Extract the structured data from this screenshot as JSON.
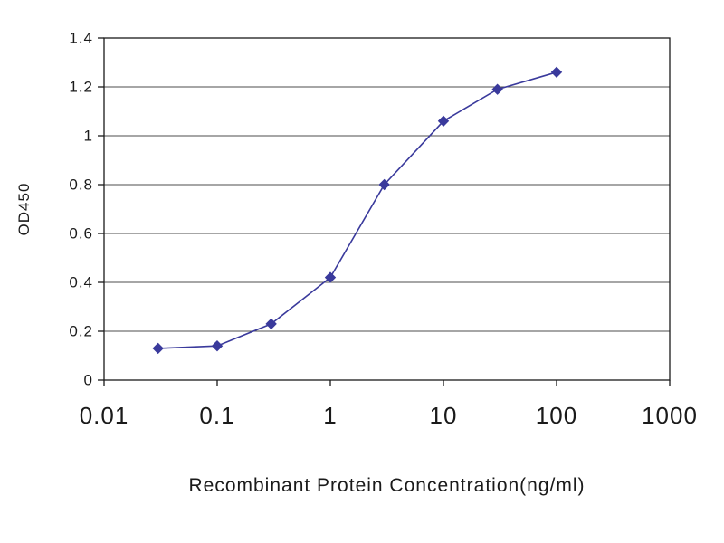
{
  "chart_data": {
    "type": "line",
    "title": "",
    "xlabel": "Recombinant Protein Concentration(ng/ml)",
    "ylabel": "OD450",
    "x_scale": "log",
    "xlim": [
      0.01,
      1000
    ],
    "ylim": [
      0,
      1.4
    ],
    "x_ticks": [
      0.01,
      0.1,
      1,
      10,
      100,
      1000
    ],
    "x_tick_labels": [
      "0.01",
      "0.1",
      "1",
      "10",
      "100",
      "1000"
    ],
    "y_ticks": [
      0,
      0.2,
      0.4,
      0.6,
      0.8,
      1,
      1.2,
      1.4
    ],
    "y_tick_labels": [
      "0",
      "0.2",
      "0.4",
      "0.6",
      "0.8",
      "1",
      "1.2",
      "1.4"
    ],
    "grid": "horizontal",
    "legend": "none",
    "series": [
      {
        "name": "OD450",
        "color": "#3a3a9c",
        "marker": "diamond",
        "points": [
          {
            "x": 0.03,
            "y": 0.13
          },
          {
            "x": 0.1,
            "y": 0.14
          },
          {
            "x": 0.3,
            "y": 0.23
          },
          {
            "x": 1,
            "y": 0.42
          },
          {
            "x": 3,
            "y": 0.8
          },
          {
            "x": 10,
            "y": 1.06
          },
          {
            "x": 30,
            "y": 1.19
          },
          {
            "x": 100,
            "y": 1.26
          }
        ]
      }
    ],
    "colors": {
      "axis": "#1a1a1a",
      "grid": "#4d4d4d",
      "background": "#ffffff"
    }
  }
}
